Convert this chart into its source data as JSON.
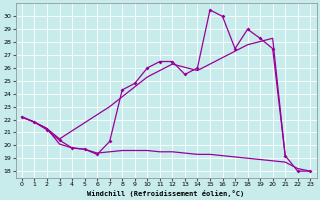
{
  "xlabel": "Windchill (Refroidissement éolien,°C)",
  "bg_color": "#c8ecec",
  "line_color": "#990099",
  "xlim": [
    -0.5,
    23.5
  ],
  "ylim": [
    17.5,
    31.0
  ],
  "xticks": [
    0,
    1,
    2,
    3,
    4,
    5,
    6,
    7,
    8,
    9,
    10,
    11,
    12,
    13,
    14,
    15,
    16,
    17,
    18,
    19,
    20,
    21,
    22,
    23
  ],
  "yticks": [
    18,
    19,
    20,
    21,
    22,
    23,
    24,
    25,
    26,
    27,
    28,
    29,
    30
  ],
  "series_bottom_x": [
    0,
    1,
    2,
    3,
    4,
    5,
    6,
    7,
    8,
    9,
    10,
    11,
    12,
    13,
    14,
    15,
    16,
    17,
    18,
    19,
    20,
    21,
    22,
    23
  ],
  "series_bottom_y": [
    22.2,
    21.8,
    21.3,
    20.1,
    19.8,
    19.7,
    19.4,
    19.5,
    19.6,
    19.6,
    19.6,
    19.5,
    19.5,
    19.4,
    19.3,
    19.3,
    19.2,
    19.1,
    19.0,
    18.9,
    18.8,
    18.7,
    18.2,
    18.0
  ],
  "series_diag_x": [
    0,
    1,
    2,
    3,
    7,
    10,
    12,
    14,
    16,
    18,
    20,
    21
  ],
  "series_diag_y": [
    22.2,
    21.8,
    21.3,
    20.5,
    23.0,
    25.3,
    26.3,
    25.8,
    26.8,
    27.8,
    28.3,
    19.2
  ],
  "series_main_x": [
    0,
    1,
    2,
    3,
    4,
    5,
    6,
    7,
    8,
    9,
    10,
    11,
    12,
    13,
    14,
    15,
    16,
    17,
    18,
    19,
    20,
    21,
    22,
    23
  ],
  "series_main_y": [
    22.2,
    21.8,
    21.2,
    20.4,
    19.8,
    19.7,
    19.3,
    20.3,
    24.3,
    24.8,
    26.0,
    26.5,
    26.5,
    25.5,
    26.0,
    30.5,
    30.0,
    27.5,
    29.0,
    28.3,
    27.5,
    19.2,
    18.0,
    18.0
  ]
}
